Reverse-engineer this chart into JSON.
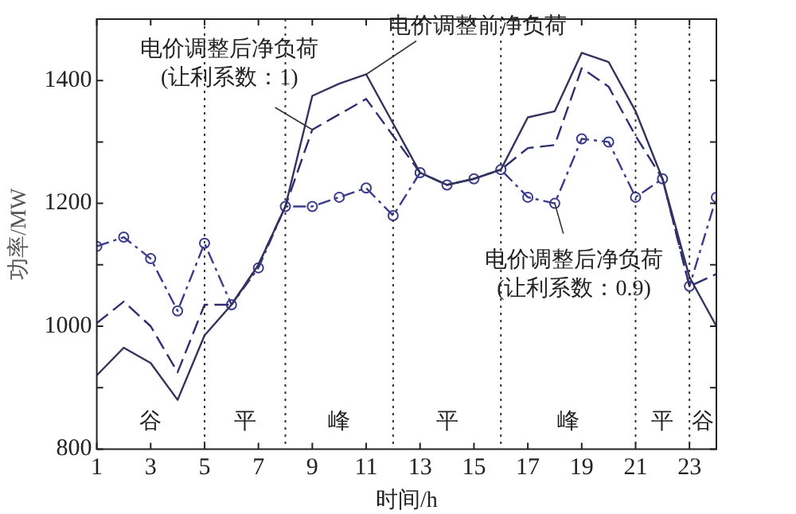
{
  "chart_data": {
    "type": "line",
    "xlabel": "时间/h",
    "ylabel": "功率/MW",
    "x": [
      1,
      2,
      3,
      4,
      5,
      6,
      7,
      8,
      9,
      10,
      11,
      12,
      13,
      14,
      15,
      16,
      17,
      18,
      19,
      20,
      21,
      22,
      23,
      24
    ],
    "series": [
      {
        "color": "#33335e",
        "line_style": "solid",
        "marker": "none",
        "values": [
          920,
          965,
          940,
          880,
          985,
          1035,
          1100,
          1195,
          1375,
          1395,
          1410,
          1330,
          1250,
          1230,
          1240,
          1255,
          1340,
          1350,
          1445,
          1430,
          1350,
          1240,
          1080,
          1000
        ]
      },
      {
        "color": "#2e2e70",
        "line_style": "dashed",
        "marker": "none",
        "values": [
          1005,
          1040,
          1000,
          925,
          1035,
          1035,
          1100,
          1195,
          1320,
          1345,
          1370,
          1310,
          1250,
          1230,
          1240,
          1255,
          1290,
          1295,
          1420,
          1390,
          1310,
          1240,
          1065,
          1085
        ]
      },
      {
        "color": "#3c3c8c",
        "line_style": "dashed",
        "marker": "circle",
        "values": [
          1130,
          1145,
          1110,
          1025,
          1135,
          1035,
          1095,
          1195,
          1195,
          1210,
          1225,
          1180,
          1250,
          1230,
          1240,
          1255,
          1210,
          1200,
          1305,
          1300,
          1210,
          1240,
          1065,
          1210
        ]
      }
    ],
    "xlim": [
      1,
      24
    ],
    "xticks": [
      1,
      3,
      5,
      7,
      9,
      11,
      13,
      15,
      17,
      19,
      21,
      23
    ],
    "ylim": [
      800,
      1500
    ],
    "yticks": [
      800,
      {
        "value": 900,
        "label": null
      },
      1000,
      {
        "value": 1100,
        "label": null
      },
      1200,
      {
        "value": 1300,
        "label": null
      },
      1400
    ],
    "grid": false,
    "legend": false,
    "ref_lines": [
      {
        "axis": "x",
        "value": 5,
        "line_style": "dotted"
      },
      {
        "axis": "x",
        "value": 8,
        "line_style": "dotted"
      },
      {
        "axis": "x",
        "value": 12,
        "line_style": "dotted"
      },
      {
        "axis": "x",
        "value": 16,
        "line_style": "dotted"
      },
      {
        "axis": "x",
        "value": 21,
        "line_style": "dotted"
      },
      {
        "axis": "x",
        "value": 23,
        "line_style": "dotted"
      }
    ],
    "annotations": [
      {
        "text": "电价调整前净负荷",
        "x": 11,
        "y": 1410
      },
      {
        "text": "电价调整后净负荷\n(让利系数：1)",
        "x": 9,
        "y": 1320
      },
      {
        "text": "电价调整后净负荷\n(让利系数：0.9)",
        "x": 18,
        "y": 1200
      },
      "谷",
      "平",
      "峰",
      "平",
      "峰",
      "平",
      "谷"
    ]
  }
}
